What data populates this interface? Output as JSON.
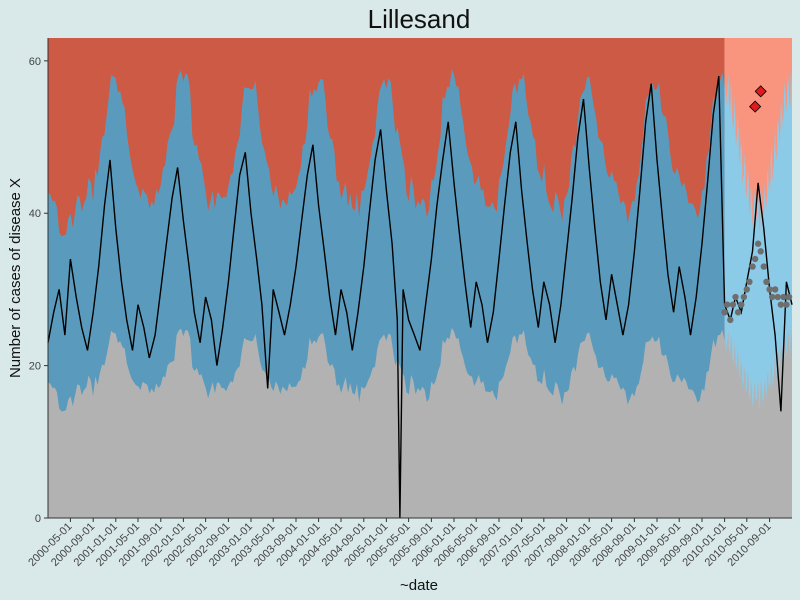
{
  "chart_data": {
    "type": "area",
    "title": "Lillesand",
    "xlabel": "~date",
    "ylabel": "Number of cases of disease X",
    "ylim": [
      0,
      63
    ],
    "xlim": [
      "2000-01-01",
      "2010-12-31"
    ],
    "y_ticks": [
      0,
      20,
      40,
      60
    ],
    "x_ticks": [
      "2000-05-01",
      "2000-09-01",
      "2001-01-01",
      "2001-05-01",
      "2001-09-01",
      "2002-01-01",
      "2002-05-01",
      "2002-09-01",
      "2003-01-01",
      "2003-05-01",
      "2003-09-01",
      "2004-01-01",
      "2004-05-01",
      "2004-09-01",
      "2005-01-01",
      "2005-05-01",
      "2005-09-01",
      "2006-01-01",
      "2006-05-01",
      "2006-09-01",
      "2007-01-01",
      "2007-05-01",
      "2007-09-01",
      "2008-01-01",
      "2008-05-01",
      "2008-09-01",
      "2009-01-01",
      "2009-05-01",
      "2009-09-01",
      "2010-01-01",
      "2010-05-01",
      "2010-09-01"
    ],
    "grid": false,
    "forecast_start": "2010-01-01",
    "band_peaks": [
      "2000-12-28",
      "2001-12-28",
      "2002-12-28",
      "2003-12-28",
      "2004-12-28",
      "2005-12-28",
      "2006-12-28",
      "2007-12-28",
      "2008-12-28",
      "2009-12-28",
      "2010-12-28"
    ],
    "band_colors": {
      "history_high": "#cc5a44",
      "history_normal": "#5a9bbd",
      "history_low": "#b2b2b2",
      "forecast_high": "#f9947e",
      "forecast_normal": "#8ccbe8",
      "forecast_low": "#b2b2b2"
    },
    "line_color": "#000000",
    "forecast_points_color": "#6e6e6e",
    "outlier_color": "#e31a1c",
    "observed_series": {
      "name": "observed",
      "points": [
        [
          "2000-01-01",
          23
        ],
        [
          "2000-02-01",
          27
        ],
        [
          "2000-03-01",
          30
        ],
        [
          "2000-04-01",
          24
        ],
        [
          "2000-05-01",
          34
        ],
        [
          "2000-06-01",
          29
        ],
        [
          "2000-07-01",
          25
        ],
        [
          "2000-08-01",
          22
        ],
        [
          "2000-09-01",
          27
        ],
        [
          "2000-10-01",
          33
        ],
        [
          "2000-11-01",
          41
        ],
        [
          "2000-12-01",
          47
        ],
        [
          "2001-01-01",
          38
        ],
        [
          "2001-02-01",
          31
        ],
        [
          "2001-03-01",
          26
        ],
        [
          "2001-04-01",
          22
        ],
        [
          "2001-05-01",
          28
        ],
        [
          "2001-06-01",
          25
        ],
        [
          "2001-07-01",
          21
        ],
        [
          "2001-08-01",
          24
        ],
        [
          "2001-09-01",
          30
        ],
        [
          "2001-10-01",
          36
        ],
        [
          "2001-11-01",
          42
        ],
        [
          "2001-12-01",
          46
        ],
        [
          "2002-01-01",
          39
        ],
        [
          "2002-02-01",
          33
        ],
        [
          "2002-03-01",
          27
        ],
        [
          "2002-04-01",
          23
        ],
        [
          "2002-05-01",
          29
        ],
        [
          "2002-06-01",
          26
        ],
        [
          "2002-07-01",
          20
        ],
        [
          "2002-08-01",
          25
        ],
        [
          "2002-09-01",
          31
        ],
        [
          "2002-10-01",
          38
        ],
        [
          "2002-11-01",
          45
        ],
        [
          "2002-12-01",
          48
        ],
        [
          "2003-01-01",
          40
        ],
        [
          "2003-02-01",
          34
        ],
        [
          "2003-03-01",
          28
        ],
        [
          "2003-04-01",
          17
        ],
        [
          "2003-05-01",
          30
        ],
        [
          "2003-06-01",
          27
        ],
        [
          "2003-07-01",
          24
        ],
        [
          "2003-08-01",
          28
        ],
        [
          "2003-09-01",
          33
        ],
        [
          "2003-10-01",
          39
        ],
        [
          "2003-11-01",
          45
        ],
        [
          "2003-12-01",
          49
        ],
        [
          "2004-01-01",
          41
        ],
        [
          "2004-02-01",
          35
        ],
        [
          "2004-03-01",
          29
        ],
        [
          "2004-04-01",
          24
        ],
        [
          "2004-05-01",
          30
        ],
        [
          "2004-06-01",
          27
        ],
        [
          "2004-07-01",
          22
        ],
        [
          "2004-08-01",
          27
        ],
        [
          "2004-09-01",
          33
        ],
        [
          "2004-10-01",
          40
        ],
        [
          "2004-11-01",
          47
        ],
        [
          "2004-12-01",
          51
        ],
        [
          "2005-01-01",
          43
        ],
        [
          "2005-02-01",
          36
        ],
        [
          "2005-03-01",
          26
        ],
        [
          "2005-03-15",
          0
        ],
        [
          "2005-04-01",
          30
        ],
        [
          "2005-05-01",
          26
        ],
        [
          "2005-06-01",
          24
        ],
        [
          "2005-07-01",
          22
        ],
        [
          "2005-08-01",
          28
        ],
        [
          "2005-09-01",
          34
        ],
        [
          "2005-10-01",
          41
        ],
        [
          "2005-11-01",
          47
        ],
        [
          "2005-12-01",
          52
        ],
        [
          "2006-01-01",
          44
        ],
        [
          "2006-02-01",
          37
        ],
        [
          "2006-03-01",
          31
        ],
        [
          "2006-04-01",
          25
        ],
        [
          "2006-05-01",
          31
        ],
        [
          "2006-06-01",
          28
        ],
        [
          "2006-07-01",
          23
        ],
        [
          "2006-08-01",
          27
        ],
        [
          "2006-09-01",
          34
        ],
        [
          "2006-10-01",
          41
        ],
        [
          "2006-11-01",
          48
        ],
        [
          "2006-12-01",
          52
        ],
        [
          "2007-01-01",
          43
        ],
        [
          "2007-02-01",
          36
        ],
        [
          "2007-03-01",
          30
        ],
        [
          "2007-04-01",
          25
        ],
        [
          "2007-05-01",
          31
        ],
        [
          "2007-06-01",
          28
        ],
        [
          "2007-07-01",
          23
        ],
        [
          "2007-08-01",
          28
        ],
        [
          "2007-09-01",
          35
        ],
        [
          "2007-10-01",
          42
        ],
        [
          "2007-11-01",
          50
        ],
        [
          "2007-12-01",
          55
        ],
        [
          "2008-01-01",
          46
        ],
        [
          "2008-02-01",
          38
        ],
        [
          "2008-03-01",
          31
        ],
        [
          "2008-04-01",
          26
        ],
        [
          "2008-05-01",
          32
        ],
        [
          "2008-06-01",
          28
        ],
        [
          "2008-07-01",
          24
        ],
        [
          "2008-08-01",
          28
        ],
        [
          "2008-09-01",
          35
        ],
        [
          "2008-10-01",
          43
        ],
        [
          "2008-11-01",
          52
        ],
        [
          "2008-12-01",
          57
        ],
        [
          "2009-01-01",
          47
        ],
        [
          "2009-02-01",
          39
        ],
        [
          "2009-03-01",
          32
        ],
        [
          "2009-04-01",
          27
        ],
        [
          "2009-05-01",
          33
        ],
        [
          "2009-06-01",
          29
        ],
        [
          "2009-07-01",
          24
        ],
        [
          "2009-08-01",
          29
        ],
        [
          "2009-09-01",
          36
        ],
        [
          "2009-10-01",
          44
        ],
        [
          "2009-11-01",
          53
        ],
        [
          "2009-12-01",
          58
        ],
        [
          "2010-01-01",
          28
        ],
        [
          "2010-02-01",
          26
        ],
        [
          "2010-03-01",
          29
        ],
        [
          "2010-04-01",
          27
        ],
        [
          "2010-05-01",
          31
        ],
        [
          "2010-06-01",
          35
        ],
        [
          "2010-07-01",
          44
        ],
        [
          "2010-08-01",
          38
        ],
        [
          "2010-09-01",
          30
        ],
        [
          "2010-10-01",
          24
        ],
        [
          "2010-11-01",
          14
        ],
        [
          "2010-12-01",
          31
        ],
        [
          "2010-12-31",
          28
        ]
      ]
    },
    "forecast_series": {
      "name": "forecast",
      "points": [
        [
          "2010-01-01",
          27
        ],
        [
          "2010-01-15",
          28
        ],
        [
          "2010-02-01",
          26
        ],
        [
          "2010-02-15",
          28
        ],
        [
          "2010-03-01",
          29
        ],
        [
          "2010-03-15",
          27
        ],
        [
          "2010-04-01",
          28
        ],
        [
          "2010-04-15",
          29
        ],
        [
          "2010-05-01",
          30
        ],
        [
          "2010-05-15",
          31
        ],
        [
          "2010-06-01",
          33
        ],
        [
          "2010-06-15",
          34
        ],
        [
          "2010-07-01",
          36
        ],
        [
          "2010-07-15",
          35
        ],
        [
          "2010-08-01",
          33
        ],
        [
          "2010-08-15",
          31
        ],
        [
          "2010-09-01",
          30
        ],
        [
          "2010-09-15",
          29
        ],
        [
          "2010-10-01",
          30
        ],
        [
          "2010-10-15",
          29
        ],
        [
          "2010-11-01",
          28
        ],
        [
          "2010-11-15",
          29
        ],
        [
          "2010-12-01",
          28
        ],
        [
          "2010-12-15",
          29
        ]
      ]
    },
    "outliers": [
      {
        "date": "2010-06-15",
        "value": 54
      },
      {
        "date": "2010-07-15",
        "value": 56
      }
    ]
  }
}
